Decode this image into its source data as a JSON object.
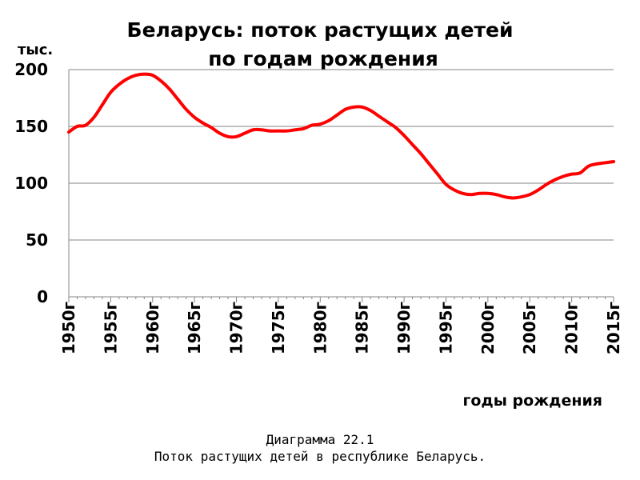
{
  "chart_data": {
    "type": "line",
    "title_line1": "Беларусь: поток растущих детей",
    "title_line2": "по годам рождения",
    "ylabel": "тыс.",
    "xlabel": "годы рождения",
    "ylim": [
      0,
      200
    ],
    "yticks": [
      "0",
      "50",
      "100",
      "150",
      "200"
    ],
    "ytick_values": [
      0,
      50,
      100,
      150,
      200
    ],
    "xlim": [
      1950,
      2015
    ],
    "xticks": [
      "1950г",
      "1955г",
      "1960г",
      "1965г",
      "1970г",
      "1975г",
      "1980г",
      "1985г",
      "1990г",
      "1995г",
      "2000г",
      "2005г",
      "2010г",
      "2015г"
    ],
    "xtick_values": [
      1950,
      1955,
      1960,
      1965,
      1970,
      1975,
      1980,
      1985,
      1990,
      1995,
      2000,
      2005,
      2010,
      2015
    ],
    "grid": true,
    "series": [
      {
        "color": "#ff0000",
        "x": [
          1950,
          1951,
          1952,
          1953,
          1954,
          1955,
          1956,
          1957,
          1958,
          1959,
          1960,
          1961,
          1962,
          1963,
          1964,
          1965,
          1966,
          1967,
          1968,
          1969,
          1970,
          1971,
          1972,
          1973,
          1974,
          1975,
          1976,
          1977,
          1978,
          1979,
          1980,
          1981,
          1982,
          1983,
          1984,
          1985,
          1986,
          1987,
          1988,
          1989,
          1990,
          1991,
          1992,
          1993,
          1994,
          1995,
          1996,
          1997,
          1998,
          1999,
          2000,
          2001,
          2002,
          2003,
          2004,
          2005,
          2006,
          2007,
          2008,
          2009,
          2010,
          2011,
          2012,
          2013,
          2014,
          2015
        ],
        "values": [
          145,
          150,
          151,
          158,
          169,
          180,
          187,
          192,
          195,
          196,
          195,
          190,
          183,
          174,
          165,
          158,
          153,
          149,
          144,
          141,
          141,
          144,
          147,
          147,
          146,
          146,
          146,
          147,
          148,
          151,
          152,
          155,
          160,
          165,
          167,
          167,
          164,
          159,
          154,
          149,
          142,
          134,
          126,
          117,
          108,
          99,
          94,
          91,
          90,
          91,
          91,
          90,
          88,
          87,
          88,
          90,
          94,
          99,
          103,
          106,
          108,
          109,
          115,
          117,
          118,
          119
        ]
      }
    ]
  },
  "caption": {
    "line1": "Диаграмма 22.1",
    "line2": "Поток растущих детей в республике Беларусь."
  }
}
